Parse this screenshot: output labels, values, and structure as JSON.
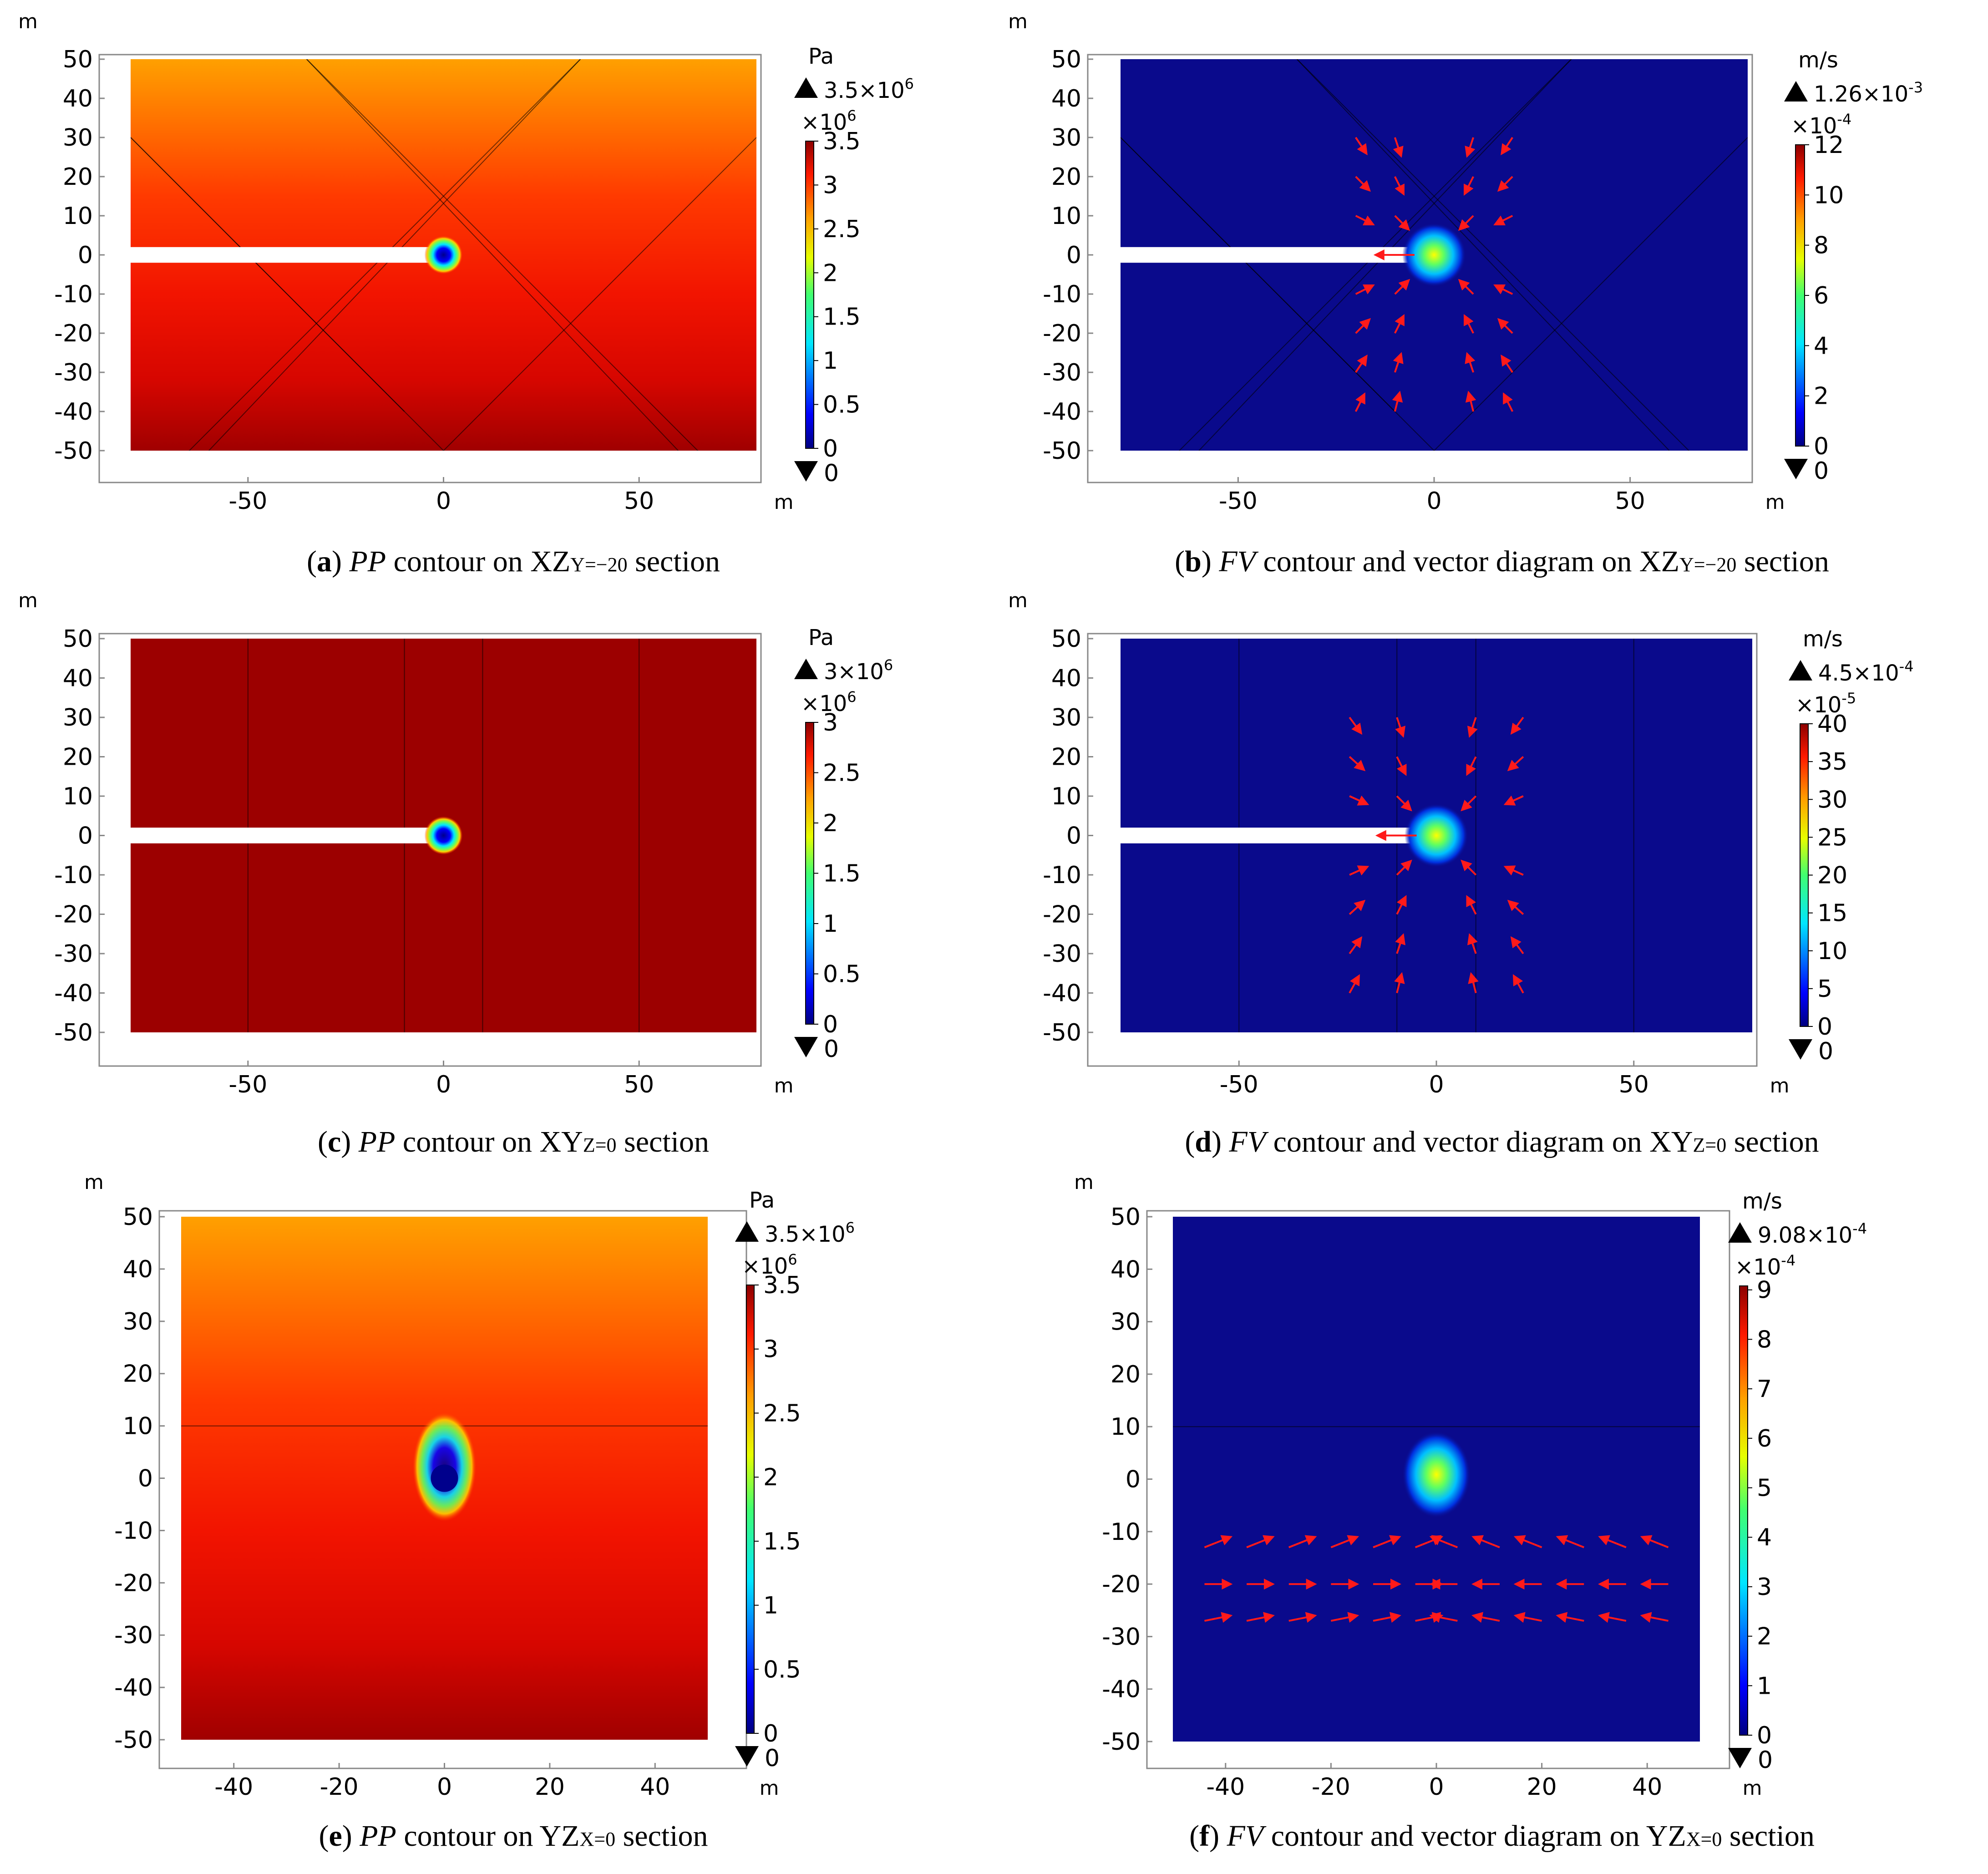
{
  "chart_data": [
    {
      "type": "heatmap",
      "panel": "a",
      "caption": {
        "letter": "a",
        "quantity": "PP",
        "text": " contour on XZ",
        "subscript": "Y=−20",
        "tail": " section"
      },
      "axis_unit_x": "m",
      "axis_unit_y": "m",
      "xticks": [
        "-50",
        "0",
        "50"
      ],
      "yticks": [
        "50",
        "40",
        "30",
        "20",
        "10",
        "0",
        "-10",
        "-20",
        "-30",
        "-40",
        "-50"
      ],
      "xlim": [
        -80,
        80
      ],
      "ylim": [
        -50,
        50
      ],
      "colorbar": {
        "unit": "Pa",
        "max_label": "3.5×10",
        "max_exp": "6",
        "scale": "×10",
        "scale_exp": "6",
        "ticks": [
          "3.5",
          "3",
          "2.5",
          "2",
          "1.5",
          "1",
          "0.5",
          "0"
        ],
        "min_label": "0",
        "range": [
          0,
          3.5
        ]
      },
      "field": "pressure-gradient"
    },
    {
      "type": "heatmap",
      "panel": "b",
      "caption": {
        "letter": "b",
        "quantity": "FV",
        "text": " contour and vector diagram on XZ",
        "subscript": "Y=−20",
        "tail": " section"
      },
      "axis_unit_x": "m",
      "axis_unit_y": "m",
      "xticks": [
        "-50",
        "0",
        "50"
      ],
      "yticks": [
        "50",
        "40",
        "30",
        "20",
        "10",
        "0",
        "-10",
        "-20",
        "-30",
        "-40",
        "-50"
      ],
      "xlim": [
        -80,
        80
      ],
      "ylim": [
        -50,
        50
      ],
      "colorbar": {
        "unit": "m/s",
        "max_label": "1.26×10",
        "max_exp": "-3",
        "scale": "×10",
        "scale_exp": "-4",
        "ticks": [
          "12",
          "10",
          "8",
          "6",
          "4",
          "2",
          "0"
        ],
        "min_label": "0",
        "range": [
          0,
          12.6
        ]
      },
      "field": "velocity"
    },
    {
      "type": "heatmap",
      "panel": "c",
      "caption": {
        "letter": "c",
        "quantity": "PP",
        "text": " contour on XY",
        "subscript": "Z=0",
        "tail": " section"
      },
      "axis_unit_x": "m",
      "axis_unit_y": "m",
      "xticks": [
        "-50",
        "0",
        "50"
      ],
      "yticks": [
        "50",
        "40",
        "30",
        "20",
        "10",
        "0",
        "-10",
        "-20",
        "-30",
        "-40",
        "-50"
      ],
      "xlim": [
        -80,
        80
      ],
      "ylim": [
        -50,
        50
      ],
      "colorbar": {
        "unit": "Pa",
        "max_label": "3×10",
        "max_exp": "6",
        "scale": "×10",
        "scale_exp": "6",
        "ticks": [
          "3",
          "2.5",
          "2",
          "1.5",
          "1",
          "0.5",
          "0"
        ],
        "min_label": "0",
        "range": [
          0,
          3
        ]
      },
      "field": "pressure-uniform"
    },
    {
      "type": "heatmap",
      "panel": "d",
      "caption": {
        "letter": "d",
        "quantity": "FV",
        "text": " contour and vector diagram on XY",
        "subscript": "Z=0",
        "tail": " section"
      },
      "axis_unit_x": "m",
      "axis_unit_y": "m",
      "xticks": [
        "-50",
        "0",
        "50"
      ],
      "yticks": [
        "50",
        "40",
        "30",
        "20",
        "10",
        "0",
        "-10",
        "-20",
        "-30",
        "-40",
        "-50"
      ],
      "xlim": [
        -80,
        80
      ],
      "ylim": [
        -50,
        50
      ],
      "colorbar": {
        "unit": "m/s",
        "max_label": "4.5×10",
        "max_exp": "-4",
        "scale": "×10",
        "scale_exp": "-5",
        "ticks": [
          "40",
          "35",
          "30",
          "25",
          "20",
          "15",
          "10",
          "5",
          "0"
        ],
        "min_label": "0",
        "range": [
          0,
          45
        ]
      },
      "field": "velocity"
    },
    {
      "type": "heatmap",
      "panel": "e",
      "caption": {
        "letter": "e",
        "quantity": "PP",
        "text": " contour on YZ",
        "subscript": "X=0",
        "tail": " section"
      },
      "axis_unit_x": "m",
      "axis_unit_y": "m",
      "xticks": [
        "-40",
        "-20",
        "0",
        "20",
        "40"
      ],
      "yticks": [
        "50",
        "40",
        "30",
        "20",
        "10",
        "0",
        "-10",
        "-20",
        "-30",
        "-40",
        "-50"
      ],
      "xlim": [
        -50,
        50
      ],
      "ylim": [
        -50,
        50
      ],
      "colorbar": {
        "unit": "Pa",
        "max_label": "3.5×10",
        "max_exp": "6",
        "scale": "×10",
        "scale_exp": "6",
        "ticks": [
          "3.5",
          "3",
          "2.5",
          "2",
          "1.5",
          "1",
          "0.5",
          "0"
        ],
        "min_label": "0",
        "range": [
          0,
          3.5
        ]
      },
      "field": "pressure-gradient"
    },
    {
      "type": "heatmap",
      "panel": "f",
      "caption": {
        "letter": "f",
        "quantity": "FV",
        "text": " contour and vector diagram on YZ",
        "subscript": "X=0",
        "tail": " section"
      },
      "axis_unit_x": "m",
      "axis_unit_y": "m",
      "xticks": [
        "-40",
        "-20",
        "0",
        "20",
        "40"
      ],
      "yticks": [
        "50",
        "40",
        "30",
        "20",
        "10",
        "0",
        "-10",
        "-20",
        "-30",
        "-40",
        "-50"
      ],
      "xlim": [
        -50,
        50
      ],
      "ylim": [
        -50,
        50
      ],
      "colorbar": {
        "unit": "m/s",
        "max_label": "9.08×10",
        "max_exp": "-4",
        "scale": "×10",
        "scale_exp": "-4",
        "ticks": [
          "9",
          "8",
          "7",
          "6",
          "5",
          "4",
          "3",
          "2",
          "1",
          "0"
        ],
        "min_label": "0",
        "range": [
          0,
          9.08
        ]
      },
      "field": "velocity"
    }
  ],
  "colors": {
    "deep_blue": "#0a0a8c",
    "pressure_high": "#e81a00",
    "pressure_deep": "#a00000",
    "pressure_top": "#ff9900",
    "vector_arrow": "#ff1a1a"
  }
}
